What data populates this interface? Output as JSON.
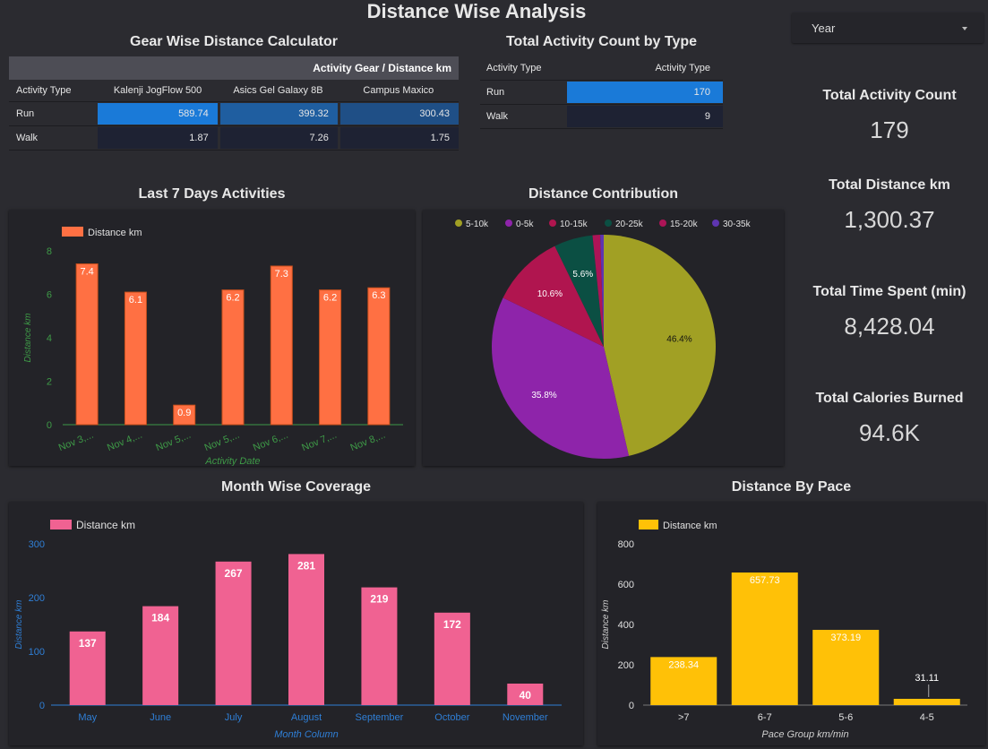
{
  "page": {
    "title": "Distance Wise Analysis"
  },
  "gear_table": {
    "title": "Gear Wise Distance Calculator",
    "group_header": "Activity Gear / Distance km",
    "row_header": "Activity Type",
    "columns": [
      "Kalenji JogFlow 500",
      "Asics Gel Galaxy 8B",
      "Campus Maxico"
    ],
    "rows": [
      {
        "label": "Run",
        "values": [
          "589.74",
          "399.32",
          "300.43"
        ]
      },
      {
        "label": "Walk",
        "values": [
          "1.87",
          "7.26",
          "1.75"
        ]
      }
    ]
  },
  "activity_table": {
    "title": "Total Activity Count by Type",
    "col1": "Activity Type",
    "col2": "Activity Type",
    "rows": [
      {
        "label": "Run",
        "value": "170"
      },
      {
        "label": "Walk",
        "value": "9"
      }
    ]
  },
  "year_select": {
    "label": "Year"
  },
  "kpis": [
    {
      "label": "Total Activity Count",
      "value": "179"
    },
    {
      "label": "Total Distance km",
      "value": "1,300.37"
    },
    {
      "label": "Total Time Spent (min)",
      "value": "8,428.04"
    },
    {
      "label": "Total Calories Burned",
      "value": "94.6K"
    }
  ],
  "colors": {
    "heat_high": "#1a7ad8",
    "heat_mid": "#1e5d9c",
    "heat_low": "#1e2233",
    "last7_bar": "#ff7043",
    "month_bar": "#f06292",
    "pace_bar": "#ffc107",
    "axis_green": "#3e9a47",
    "axis_blue": "#2f7fd6"
  },
  "chart_data": [
    {
      "id": "last7",
      "type": "bar",
      "title": "Last 7 Days Activities",
      "legend": "Distance km",
      "legend_position": "top-left",
      "xlabel": "Activity Date",
      "ylabel": "Distance km",
      "categories": [
        "Nov 3,...",
        "Nov 4,...",
        "Nov 5,...",
        "Nov 5,...",
        "Nov 6,...",
        "Nov 7,...",
        "Nov 8,..."
      ],
      "values": [
        7.4,
        6.1,
        0.9,
        6.2,
        7.3,
        6.2,
        6.3
      ],
      "labels": [
        "7.4",
        "6.1",
        "0.9",
        "6.2",
        "7.3",
        "6.2",
        "6.3"
      ],
      "ylim": [
        0,
        8
      ],
      "yticks": [
        "0",
        "2",
        "4",
        "6",
        "8"
      ],
      "ytick_values": [
        0,
        2,
        4,
        6,
        8
      ]
    },
    {
      "id": "pie",
      "type": "pie",
      "title": "Distance Contribution",
      "legend_position": "top",
      "slices": [
        {
          "name": "5-10k",
          "value": 46.4,
          "label": "46.4%",
          "color": "#a1a024"
        },
        {
          "name": "0-5k",
          "value": 35.8,
          "label": "35.8%",
          "color": "#8e24aa"
        },
        {
          "name": "10-15k",
          "value": 10.6,
          "label": "10.6%",
          "color": "#b0154f"
        },
        {
          "name": "20-25k",
          "value": 5.6,
          "label": "5.6%",
          "color": "#0b4f43"
        },
        {
          "name": "15-20k",
          "value": 1.1,
          "label": "",
          "color": "#ad1457"
        },
        {
          "name": "30-35k",
          "value": 0.5,
          "label": "",
          "color": "#5e35b1"
        }
      ]
    },
    {
      "id": "month",
      "type": "bar",
      "title": "Month Wise Coverage",
      "legend": "Distance km",
      "legend_position": "top-left",
      "xlabel": "Month Column",
      "ylabel": "Distance km",
      "categories": [
        "May",
        "June",
        "July",
        "August",
        "September",
        "October",
        "November"
      ],
      "values": [
        137,
        184,
        267,
        281,
        219,
        172,
        40
      ],
      "labels": [
        "137",
        "184",
        "267",
        "281",
        "219",
        "172",
        "40"
      ],
      "ylim": [
        0,
        300
      ],
      "yticks": [
        "0",
        "100",
        "200",
        "300"
      ],
      "ytick_values": [
        0,
        100,
        200,
        300
      ]
    },
    {
      "id": "pace",
      "type": "bar",
      "title": "Distance By Pace",
      "legend": "Distance km",
      "legend_position": "top-left",
      "xlabel": "Pace Group km/min",
      "ylabel": "Distance km",
      "categories": [
        ">7",
        "6-7",
        "5-6",
        "4-5"
      ],
      "values": [
        238.34,
        657.73,
        373.19,
        31.11
      ],
      "labels": [
        "238.34",
        "657.73",
        "373.19",
        "31.11"
      ],
      "ylim": [
        0,
        800
      ],
      "yticks": [
        "0",
        "200",
        "400",
        "600",
        "800"
      ],
      "ytick_values": [
        0,
        200,
        400,
        600,
        800
      ]
    }
  ]
}
